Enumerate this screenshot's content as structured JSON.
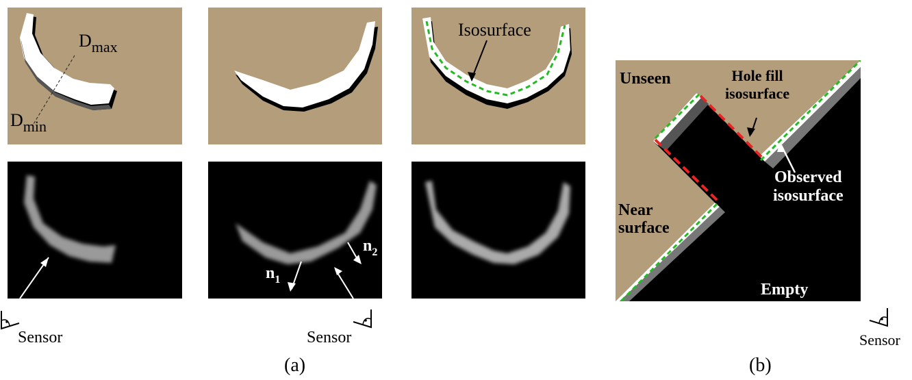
{
  "panel_a": {
    "dmax_label": "D",
    "dmax_sub": "max",
    "dmin_label": "D",
    "dmin_sub": "min",
    "isosurface_label": "Isosurface",
    "n1_label": "n",
    "n1_sub": "1",
    "n2_label": "n",
    "n2_sub": "2",
    "sensor_left_label": "Sensor",
    "sensor_mid_label": "Sensor",
    "caption": "(a)"
  },
  "panel_b": {
    "unseen_label": "Unseen",
    "hole_fill_label": "Hole fill\nisosurface",
    "observed_label": "Observed\nisosurface",
    "near_surface_label": "Near\nsurface",
    "empty_label": "Empty",
    "sensor_label": "Sensor",
    "caption": "(b)"
  },
  "colors": {
    "tan": "#b49d7b",
    "black": "#000000",
    "white": "#ffffff",
    "green_dash": "#22bb22",
    "red_dash": "#ee2222"
  }
}
